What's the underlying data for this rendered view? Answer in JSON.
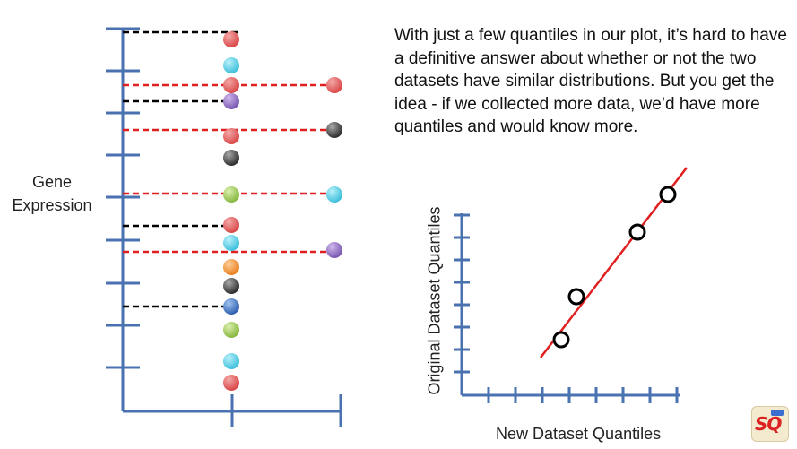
{
  "gene_axis_label": [
    "Gene",
    "Expression"
  ],
  "explanation": "With just a few quantiles in our plot, it’s hard to have a definitive answer about whether or not the two datasets have similar distributions. But you get the idea - if we collected more data, we’d have more quantiles and would know more.",
  "qq_plot": {
    "xlabel": "New Dataset Quantiles",
    "ylabel": "Original Dataset Quantiles"
  },
  "colors": {
    "axis": "#4a72b0",
    "fit_line": "#e02020",
    "black_dash": "#000000",
    "red_dash": "#e02020",
    "red": "#e06060",
    "cyan": "#5fd0e8",
    "purple": "#9a78c8",
    "gray": "#555555",
    "green": "#a8d060",
    "orange": "#f29a3c",
    "blue": "#4a80c8"
  },
  "logo": {
    "icon": "statquest-logo-icon"
  }
}
